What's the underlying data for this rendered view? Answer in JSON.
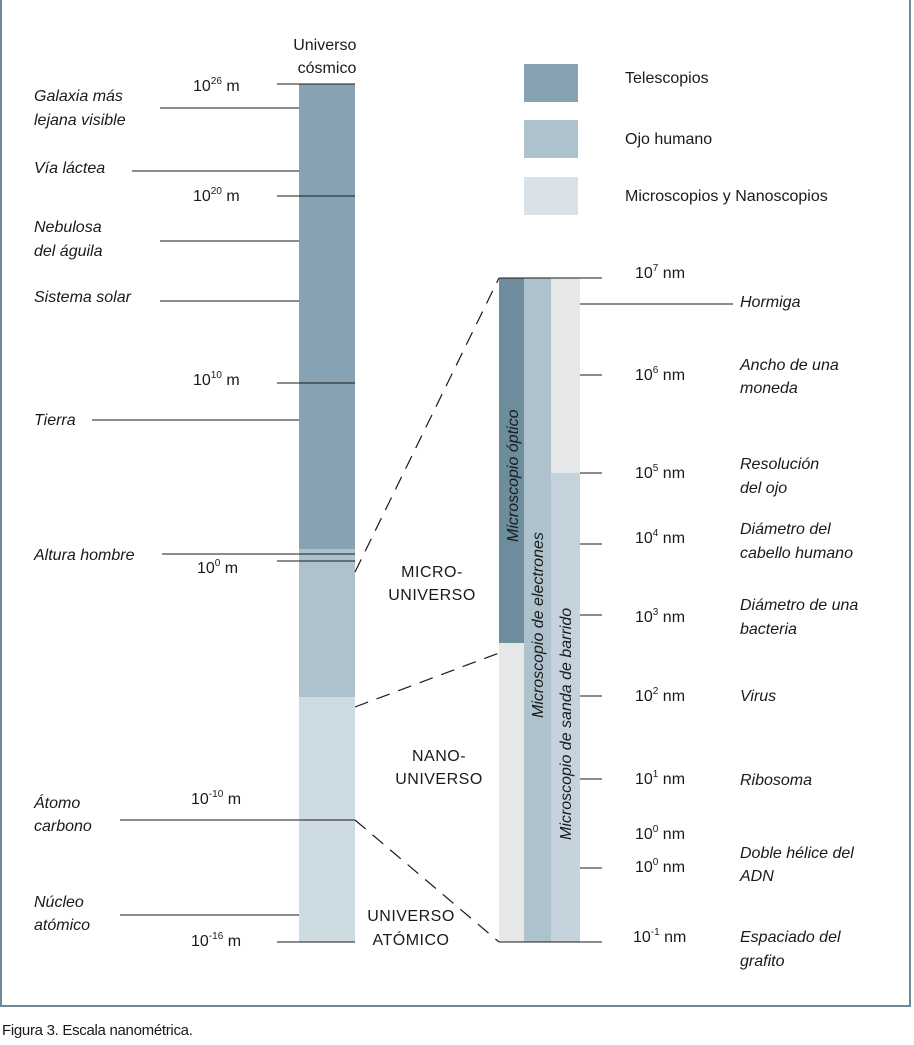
{
  "column_title": [
    "Universo",
    "cósmico"
  ],
  "legend": [
    {
      "label": "Telescopios",
      "color": "#86a2b3"
    },
    {
      "label": "Ojo humano",
      "color": "#aec2ce"
    },
    {
      "label": "Microscopios y Nanoscopios",
      "color": "#d7e1e7"
    }
  ],
  "left_scale": [
    {
      "base": "10",
      "exp": "26",
      "unit": " m"
    },
    {
      "base": "10",
      "exp": "20",
      "unit": " m"
    },
    {
      "base": "10",
      "exp": "10",
      "unit": " m"
    },
    {
      "base": "10",
      "exp": "0",
      "unit": " m"
    },
    {
      "base": "10",
      "exp": "-10",
      "unit": " m"
    },
    {
      "base": "10",
      "exp": "-16",
      "unit": " m"
    }
  ],
  "left_objects": [
    [
      "Galaxia más",
      "lejana visible"
    ],
    [
      "Vía láctea"
    ],
    [
      "Nebulosa",
      "del águila"
    ],
    [
      "Sistema solar"
    ],
    [
      "Tierra"
    ],
    [
      "Altura hombre"
    ],
    [
      "Átomo",
      "carbono"
    ],
    [
      "Núcleo",
      "atómico"
    ]
  ],
  "regions": [
    [
      "MICRO-",
      "UNIVERSO"
    ],
    [
      "NANO-",
      "UNIVERSO"
    ],
    [
      "UNIVERSO",
      "ATÓMICO"
    ]
  ],
  "instrument_bars": [
    "Microscopio óptico",
    "Microscopio de electrones",
    "Microscopio de sanda de barrido"
  ],
  "right_scale": [
    {
      "base": "10",
      "exp": "7",
      "unit": " nm"
    },
    {
      "base": "10",
      "exp": "6",
      "unit": " nm"
    },
    {
      "base": "10",
      "exp": "5",
      "unit": " nm"
    },
    {
      "base": "10",
      "exp": "4",
      "unit": " nm"
    },
    {
      "base": "10",
      "exp": "3",
      "unit": " nm"
    },
    {
      "base": "10",
      "exp": "2",
      "unit": " nm"
    },
    {
      "base": "10",
      "exp": "1",
      "unit": " nm"
    },
    {
      "base": "10",
      "exp": "0",
      "unit": " nm"
    },
    {
      "base": "10",
      "exp": "0",
      "unit": " nm"
    },
    {
      "base": "10",
      "exp": "-1",
      "unit": " nm"
    }
  ],
  "right_objects": [
    [
      "Hormiga"
    ],
    [
      "Ancho de una",
      "moneda"
    ],
    [
      "Resolución",
      "del ojo"
    ],
    [
      "Diámetro del",
      "cabello humano"
    ],
    [
      "Diámetro de una",
      "bacteria"
    ],
    [
      "Virus"
    ],
    [
      "Ribosoma"
    ],
    [
      "Doble hélice del",
      "ADN"
    ],
    [
      "Espaciado del",
      "grafito"
    ]
  ],
  "caption": "Figura 3. Escala nanométrica.",
  "colors": {
    "telescope": "#86a2b3",
    "eye": "#aec2ce",
    "micro": "#d7e1e7",
    "optical_bar": "#6d8c9c",
    "light_gray": "#e6e7e8",
    "frame": "#6d8a99"
  }
}
